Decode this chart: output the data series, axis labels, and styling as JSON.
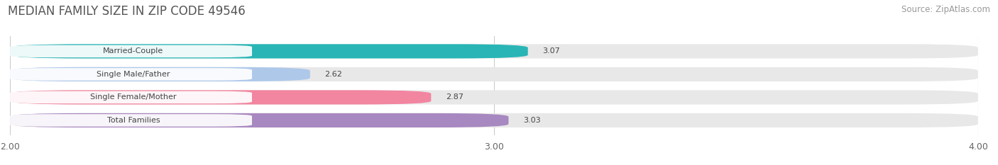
{
  "title": "MEDIAN FAMILY SIZE IN ZIP CODE 49546",
  "source": "Source: ZipAtlas.com",
  "categories": [
    "Married-Couple",
    "Single Male/Father",
    "Single Female/Mother",
    "Total Families"
  ],
  "values": [
    3.07,
    2.62,
    2.87,
    3.03
  ],
  "bar_colors": [
    "#29b5b5",
    "#aec8ea",
    "#f285a0",
    "#a888c0"
  ],
  "xlim": [
    2.0,
    4.0
  ],
  "xticks": [
    2.0,
    3.0,
    4.0
  ],
  "xtick_labels": [
    "2.00",
    "3.00",
    "4.00"
  ],
  "background_color": "#ffffff",
  "bar_bg_color": "#e8e8e8",
  "title_fontsize": 12,
  "source_fontsize": 8.5,
  "label_fontsize": 8,
  "value_fontsize": 8,
  "tick_fontsize": 9
}
